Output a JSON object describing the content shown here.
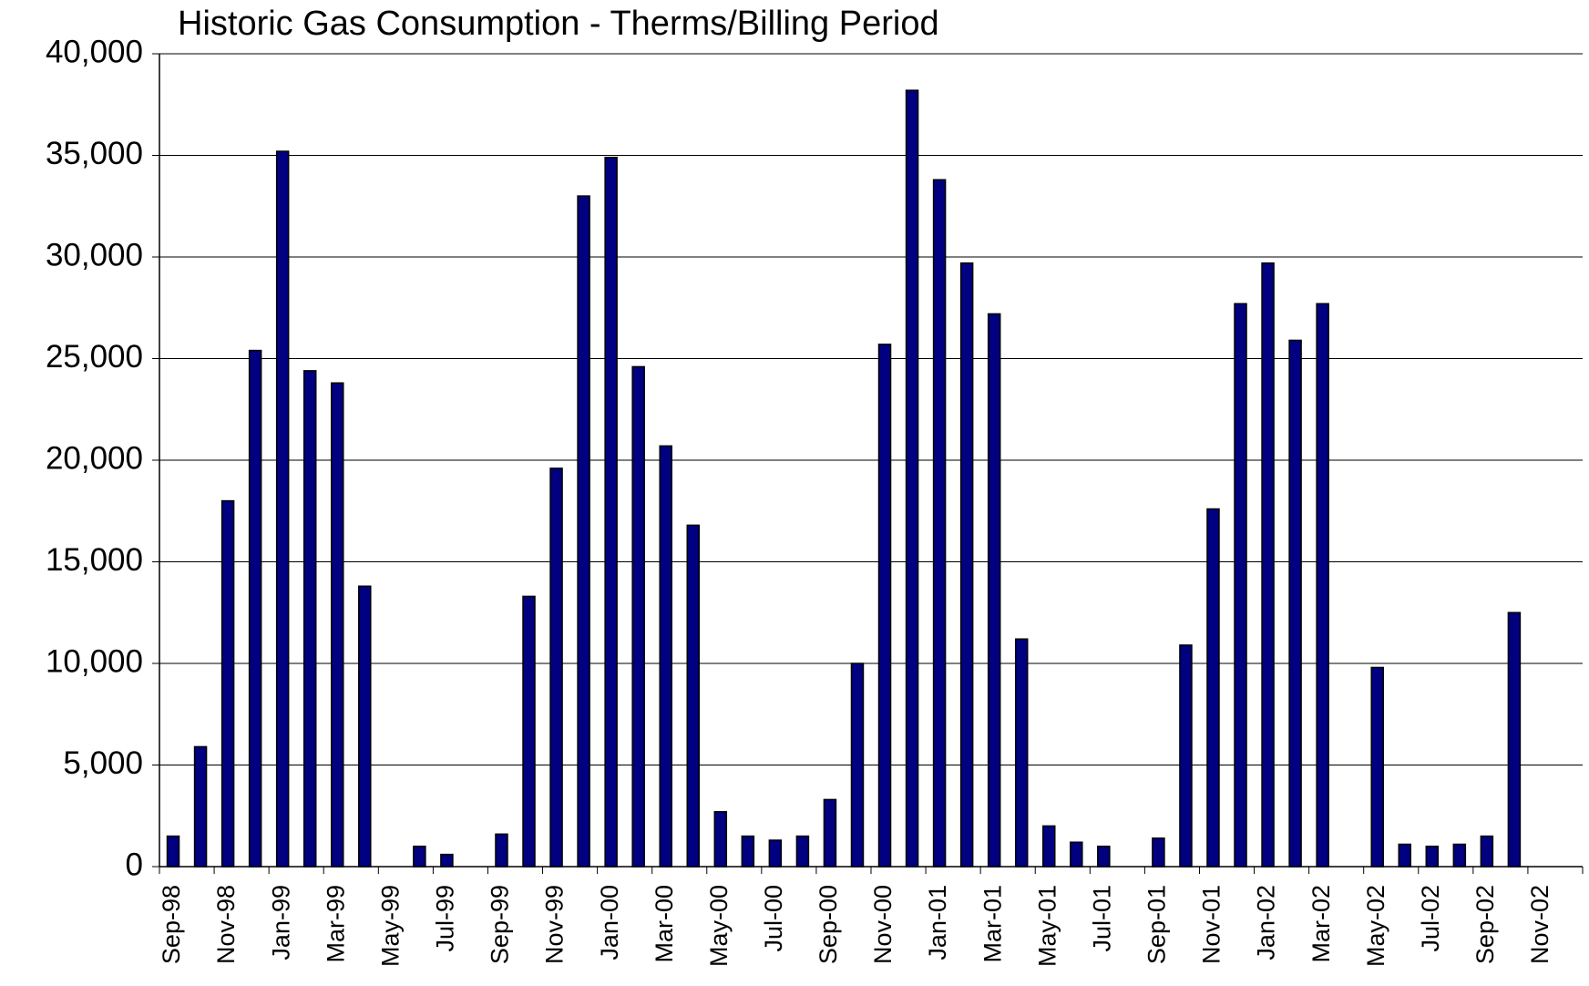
{
  "chart_data": {
    "type": "bar",
    "title": "Historic Gas Consumption - Therms/Billing Period",
    "categories": [
      "Sep-98",
      null,
      "Nov-98",
      null,
      "Jan-99",
      null,
      "Mar-99",
      null,
      "May-99",
      null,
      "Jul-99",
      null,
      "Sep-99",
      null,
      "Nov-99",
      null,
      "Jan-00",
      null,
      "Mar-00",
      null,
      "May-00",
      null,
      "Jul-00",
      null,
      "Sep-00",
      null,
      "Nov-00",
      null,
      "Jan-01",
      null,
      "Mar-01",
      null,
      "May-01",
      null,
      "Jul-01",
      null,
      "Sep-01",
      null,
      "Nov-01",
      null,
      "Jan-02",
      null,
      "Mar-02",
      null,
      "May-02",
      null,
      "Jul-02",
      null,
      "Sep-02",
      null,
      "Nov-02",
      null
    ],
    "values": [
      1500,
      5900,
      18000,
      25400,
      35200,
      24400,
      23800,
      13800,
      null,
      1000,
      600,
      null,
      1600,
      13300,
      19600,
      33000,
      34900,
      24600,
      20700,
      16800,
      2700,
      1500,
      1300,
      1500,
      3300,
      10000,
      25700,
      38200,
      33800,
      29700,
      27200,
      11200,
      2000,
      1200,
      1000,
      null,
      1400,
      10900,
      17600,
      27700,
      29700,
      25900,
      27700,
      null,
      9800,
      1100,
      1000,
      1100,
      1500,
      12500,
      null,
      null
    ],
    "color": "#000080",
    "ylim": [
      0,
      40000
    ],
    "yticks": [
      0,
      {
        "value": 5000,
        "label": "5,000"
      },
      {
        "value": 10000,
        "label": "10,000"
      },
      {
        "value": 15000,
        "label": "15,000"
      },
      {
        "value": 20000,
        "label": "20,000"
      },
      {
        "value": 25000,
        "label": "25,000"
      },
      {
        "value": 30000,
        "label": "30,000"
      },
      {
        "value": 35000,
        "label": "35,000"
      },
      {
        "value": 40000,
        "label": "40,000"
      }
    ],
    "grid": true
  }
}
